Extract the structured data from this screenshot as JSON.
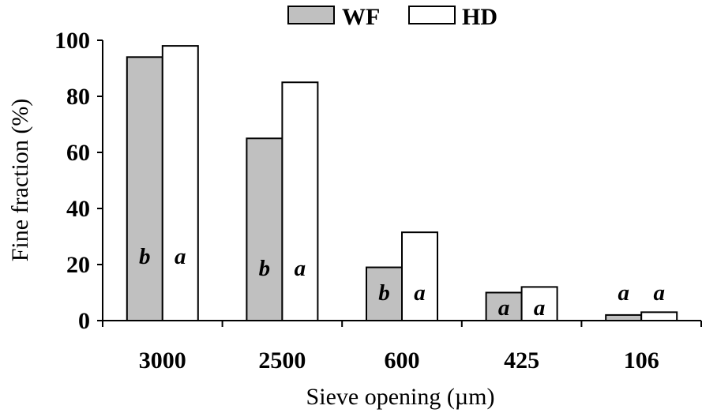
{
  "chart_data": {
    "type": "bar",
    "xlabel": "Sieve opening (µm)",
    "ylabel": "Fine fraction (%)",
    "ylim": [
      0,
      100
    ],
    "yticks": [
      "0",
      "20",
      "40",
      "60",
      "80",
      "100"
    ],
    "categories": [
      "3000",
      "2500",
      "600",
      "425",
      "106"
    ],
    "series": [
      {
        "name": "WF",
        "color": "#c0c0c0",
        "values": [
          94,
          65,
          19,
          10,
          2
        ],
        "letters": [
          "b",
          "b",
          "b",
          "a",
          "a"
        ]
      },
      {
        "name": "HD",
        "color": "#ffffff",
        "values": [
          98,
          85,
          31.5,
          12,
          3
        ],
        "letters": [
          "a",
          "a",
          "a",
          "a",
          "a"
        ]
      }
    ],
    "legend_position": "top-center",
    "grid": false
  }
}
